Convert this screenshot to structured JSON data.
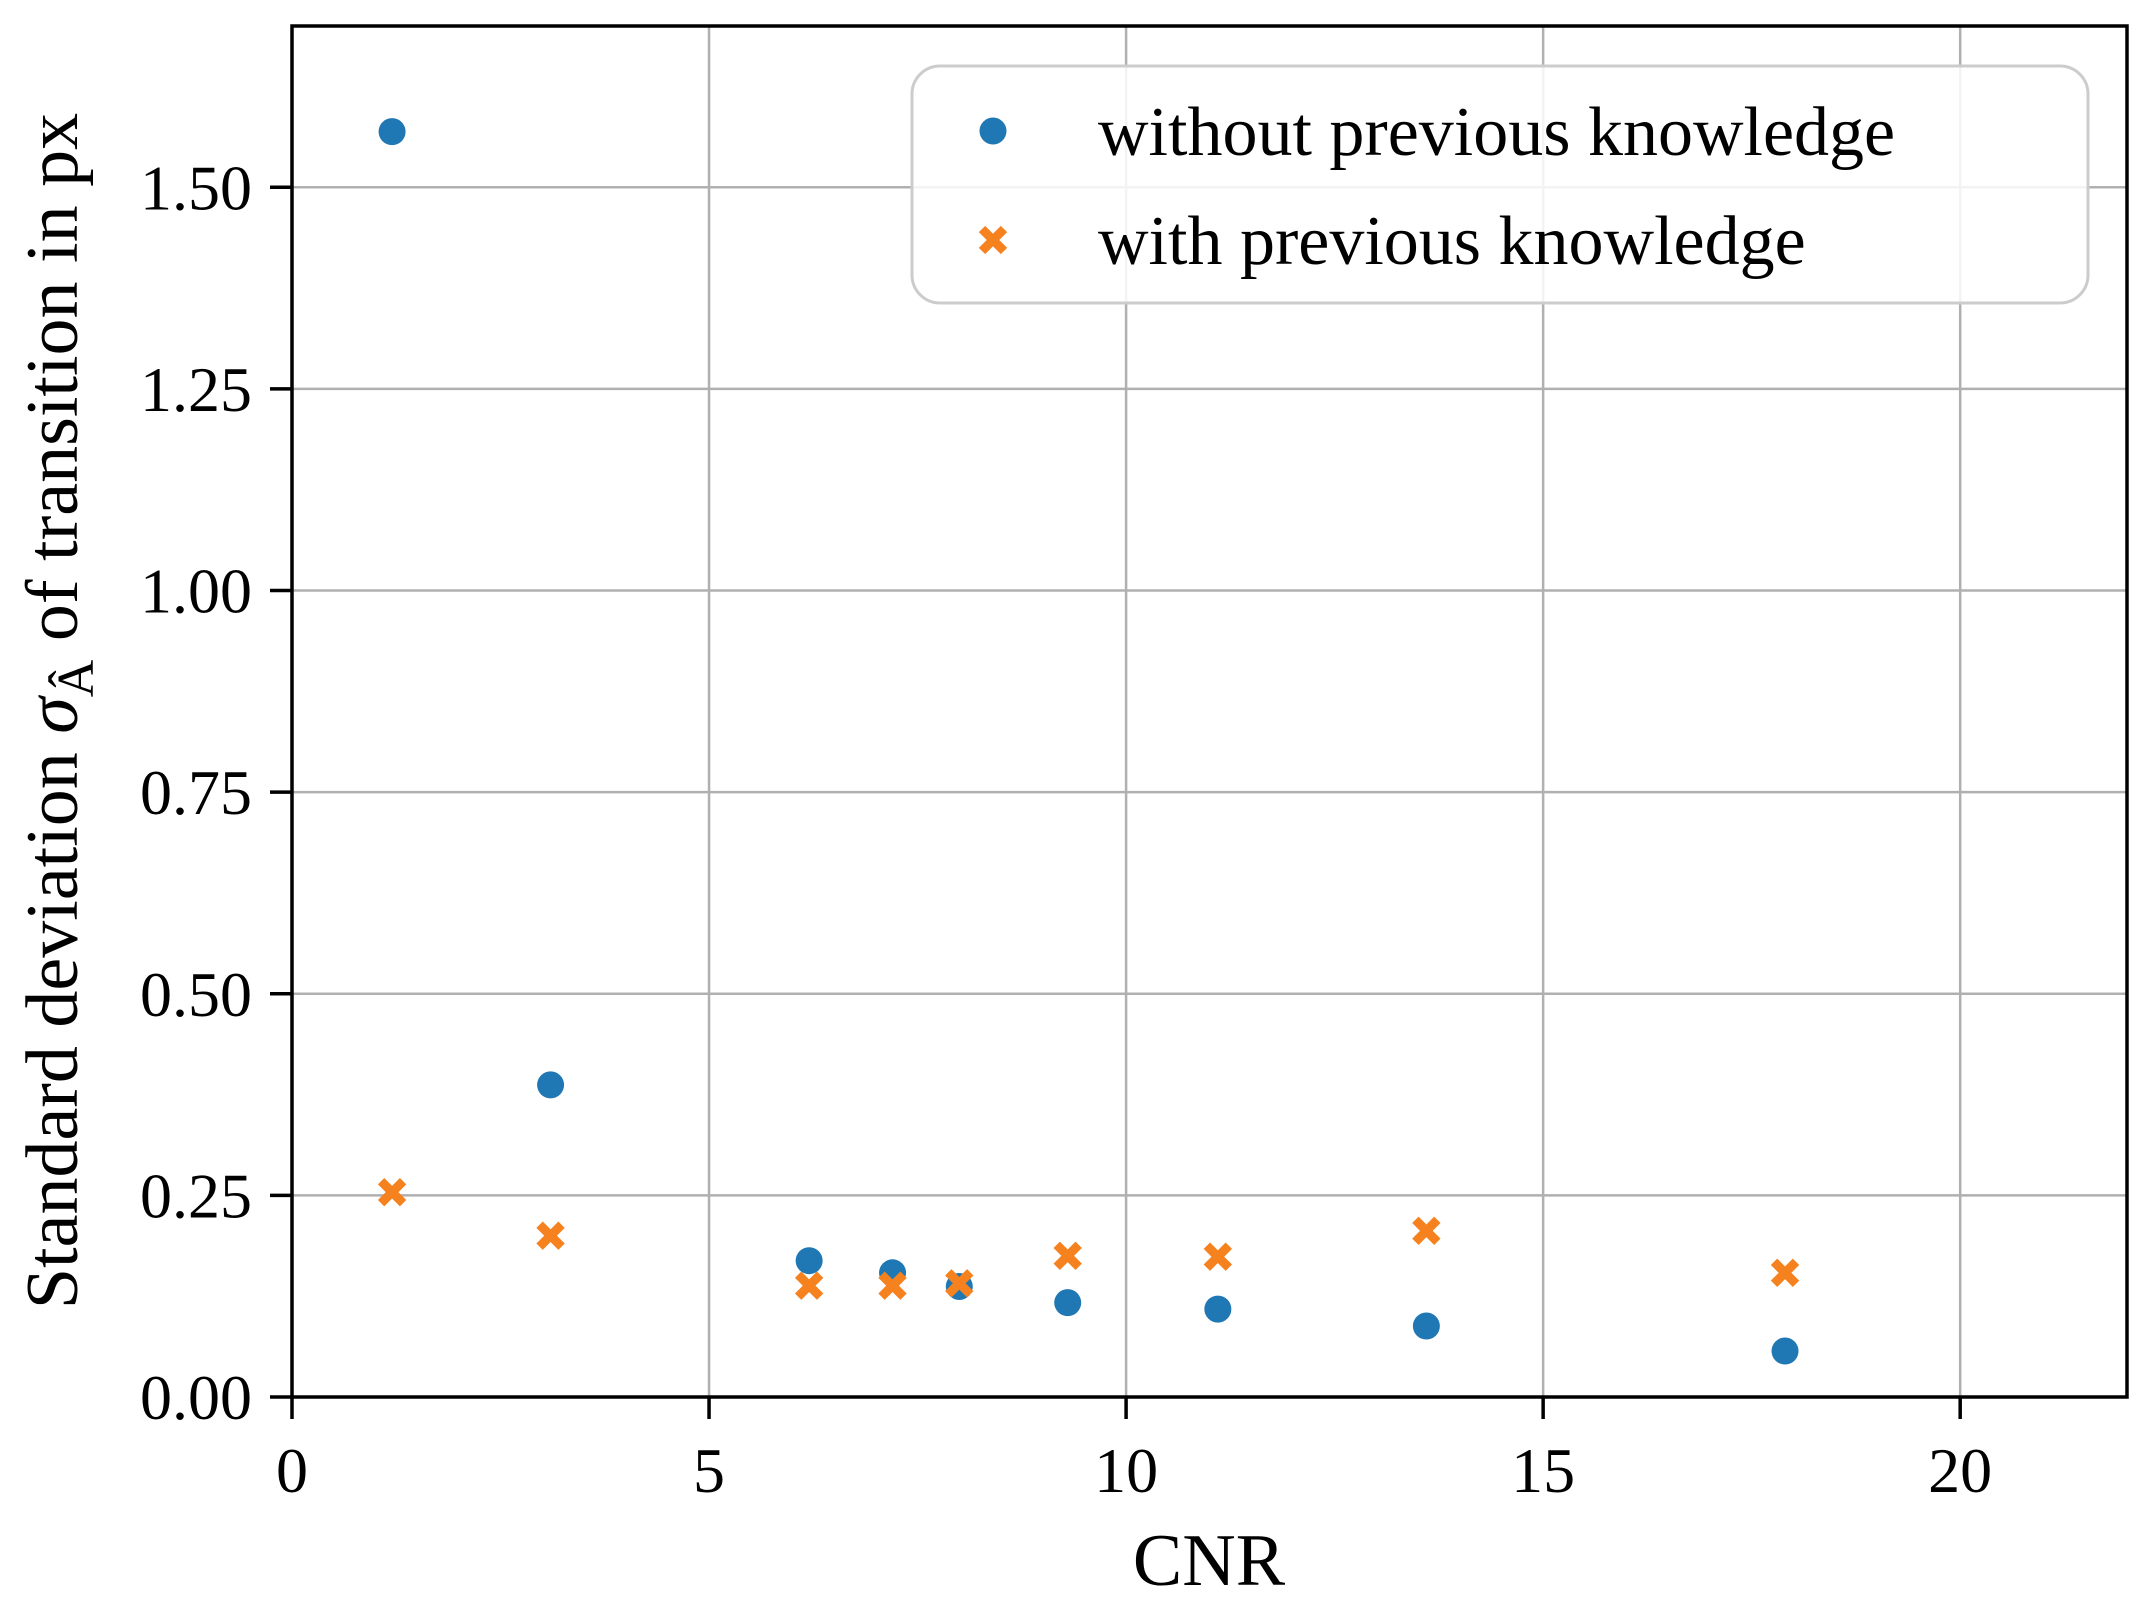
{
  "figure": {
    "background_color": "#ffffff"
  },
  "chart_data": {
    "type": "scatter",
    "title": "",
    "xlabel": "CNR",
    "ylabel": "Standard deviation σÂ of transition in px",
    "ylabel_parts": {
      "prefix": "Standard deviation ",
      "sigma": "σ",
      "subscript": "Â",
      "suffix": " of transition in px"
    },
    "xlim": [
      0,
      22
    ],
    "ylim": [
      0,
      1.7
    ],
    "x_tick_values": [
      0,
      5,
      10,
      15,
      20
    ],
    "x_tick_labels": [
      "0",
      "5",
      "10",
      "15",
      "20"
    ],
    "y_tick_values": [
      0.0,
      0.25,
      0.5,
      0.75,
      1.0,
      1.25,
      1.5
    ],
    "y_tick_labels": [
      "0.00",
      "0.25",
      "0.50",
      "0.75",
      "1.00",
      "1.25",
      "1.50"
    ],
    "grid": true,
    "grid_color": "#b0b0b0",
    "spine_color": "#000000",
    "legend_position": "upper right",
    "legend_border_color": "#cccccc",
    "series": [
      {
        "name": "without previous knowledge",
        "marker": "circle",
        "color": "#1f77b4",
        "points": [
          [
            1.2,
            1.569
          ],
          [
            3.1,
            0.387
          ],
          [
            6.2,
            0.169
          ],
          [
            7.2,
            0.154
          ],
          [
            8.0,
            0.137
          ],
          [
            9.3,
            0.117
          ],
          [
            11.1,
            0.109
          ],
          [
            13.6,
            0.088
          ],
          [
            17.9,
            0.057
          ]
        ]
      },
      {
        "name": "with previous knowledge",
        "marker": "x",
        "color": "#f5821f",
        "points": [
          [
            1.2,
            0.254
          ],
          [
            3.1,
            0.2
          ],
          [
            6.2,
            0.138
          ],
          [
            7.2,
            0.138
          ],
          [
            8.0,
            0.141
          ],
          [
            9.3,
            0.175
          ],
          [
            11.1,
            0.174
          ],
          [
            13.6,
            0.206
          ],
          [
            17.9,
            0.154
          ]
        ]
      }
    ]
  }
}
